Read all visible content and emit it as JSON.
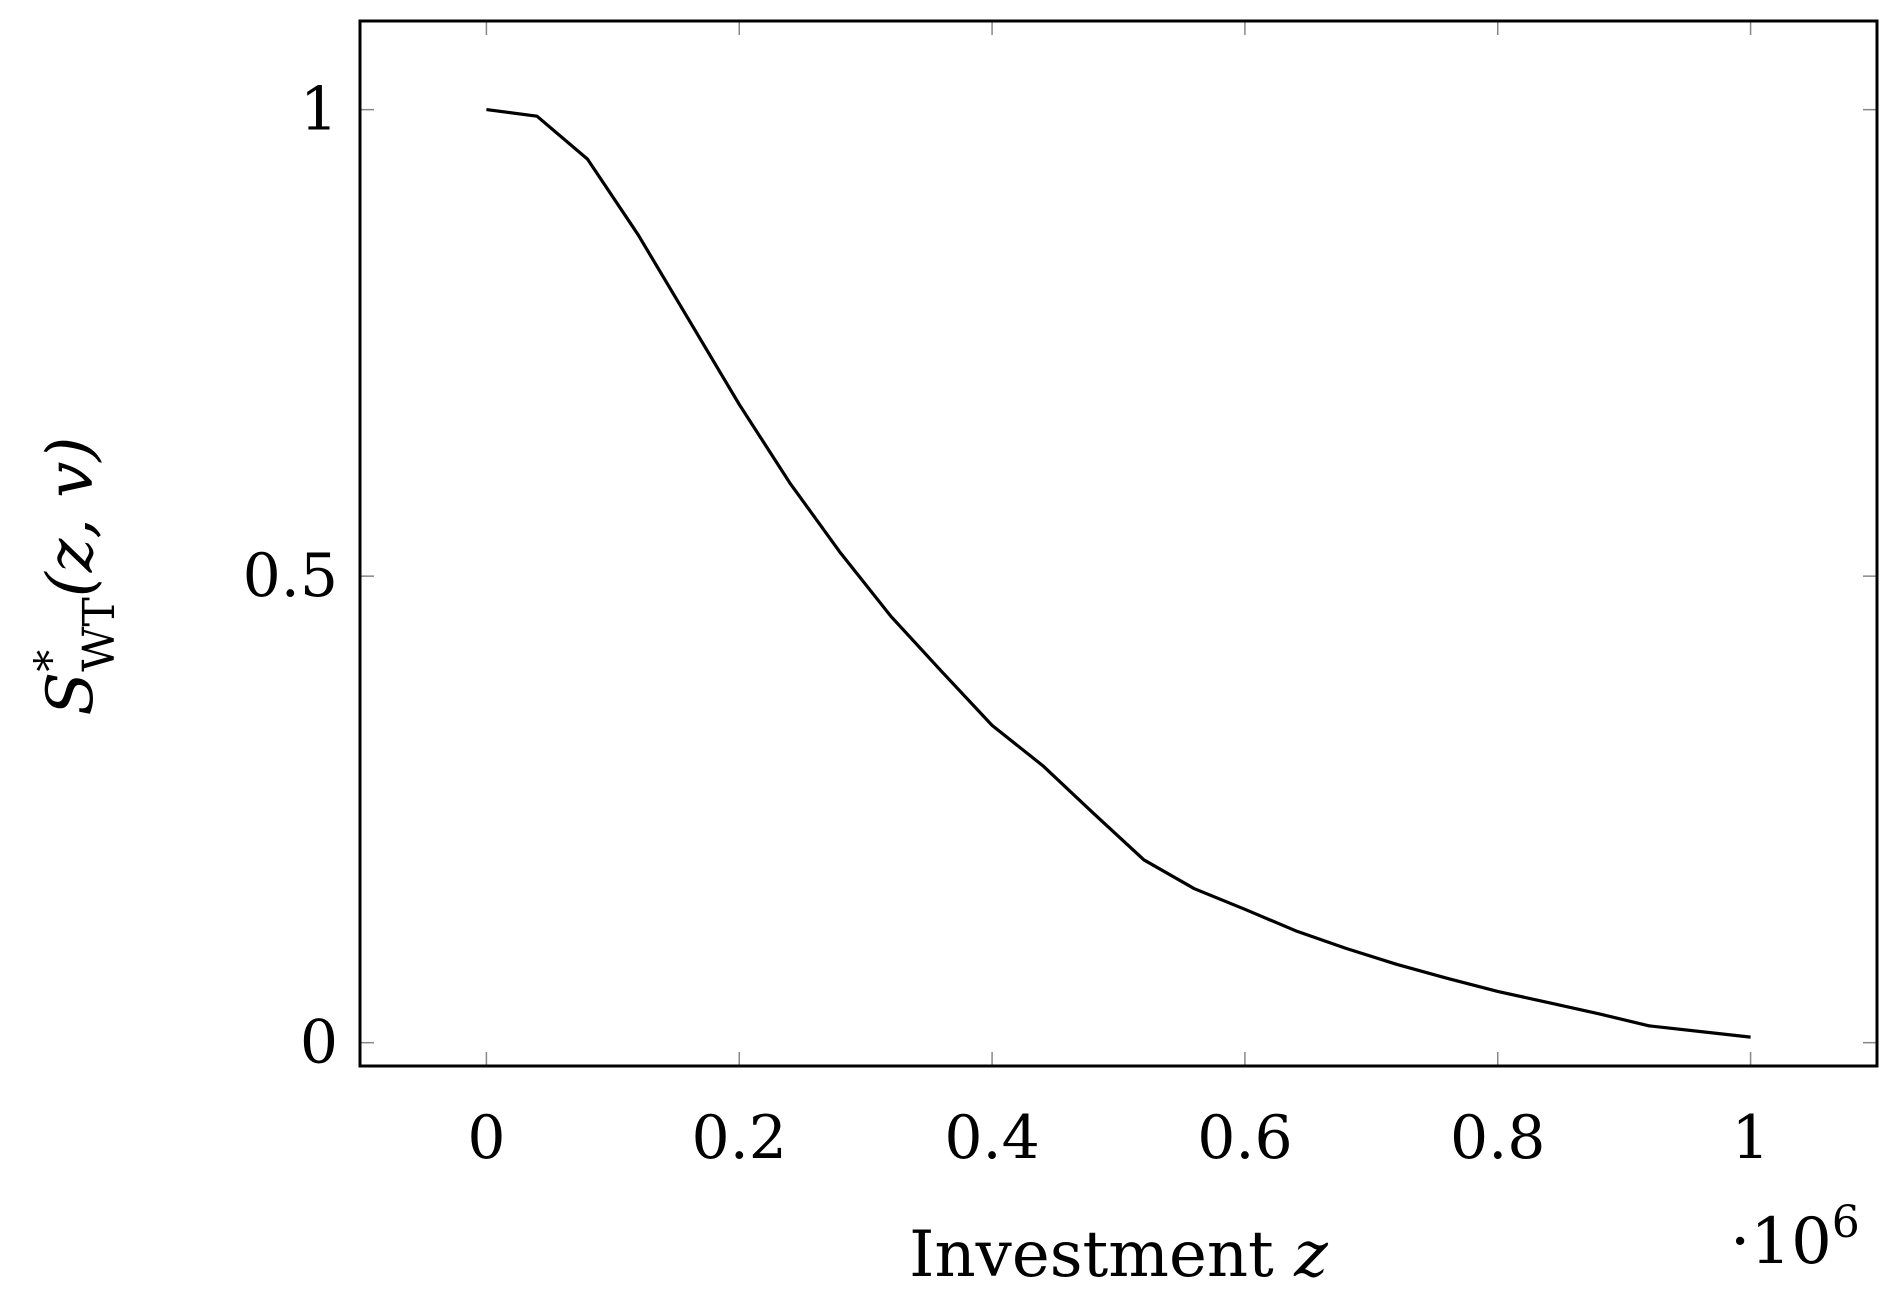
{
  "chart_data": {
    "type": "line",
    "xlabel": "Investment",
    "xlabel_var": "z",
    "ylabel": {
      "symbol": "S",
      "superscript": "*",
      "subscript": "WT",
      "args": "(z, v)"
    },
    "x_scale_label": "·10",
    "x_scale_exponent": "6",
    "xlim": [
      -0.1,
      1.1
    ],
    "ylim": [
      -0.025,
      1.095
    ],
    "grid": false,
    "x_ticks": [
      0,
      0.2,
      0.4,
      0.6,
      0.8,
      1
    ],
    "x_tick_labels": [
      "0",
      "0.2",
      "0.4",
      "0.6",
      "0.8",
      "1"
    ],
    "y_ticks": [
      0,
      0.5,
      1
    ],
    "y_tick_labels": [
      "0",
      "0.5",
      "1"
    ],
    "series": [
      {
        "color": "#000000",
        "x": [
          0,
          0.04,
          0.08,
          0.12,
          0.16,
          0.2,
          0.24,
          0.28,
          0.32,
          0.36,
          0.4,
          0.44,
          0.48,
          0.52,
          0.56,
          0.6,
          0.64,
          0.68,
          0.72,
          0.76,
          0.8,
          0.84,
          0.88,
          0.92,
          0.96,
          1.0
        ],
        "y": [
          1.0,
          0.993,
          0.947,
          0.866,
          0.775,
          0.684,
          0.6,
          0.525,
          0.457,
          0.398,
          0.34,
          0.297,
          0.246,
          0.196,
          0.165,
          0.143,
          0.12,
          0.101,
          0.084,
          0.069,
          0.055,
          0.043,
          0.031,
          0.018,
          0.012,
          0.006
        ]
      }
    ]
  }
}
